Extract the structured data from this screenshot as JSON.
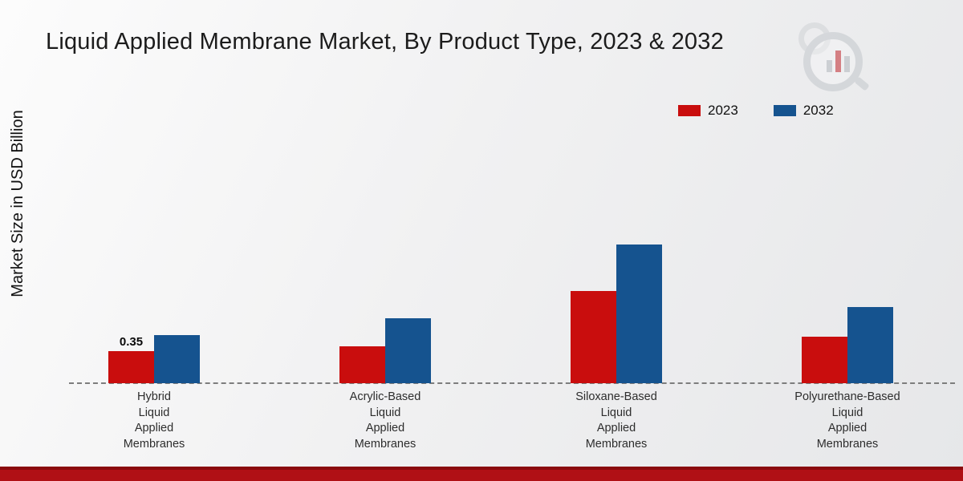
{
  "title": "Liquid Applied Membrane Market, By Product Type, 2023 & 2032",
  "ylabel": "Market Size in USD Billion",
  "colors": {
    "series_2023": "#c90d0d",
    "series_2032": "#15538f",
    "footer_band": "#b01015",
    "footer_band_edge": "#8a0a0e",
    "baseline": "#7d7d7d"
  },
  "legend": {
    "items": [
      {
        "label": "2023"
      },
      {
        "label": "2032"
      }
    ]
  },
  "chart_data": {
    "type": "bar",
    "title": "Liquid Applied Membrane Market, By Product Type, 2023 & 2032",
    "xlabel": "",
    "ylabel": "Market Size in USD Billion",
    "unit": "USD Billion",
    "categories": [
      "Hybrid Liquid Applied Membranes",
      "Acrylic-Based Liquid Applied Membranes",
      "Siloxane-Based Liquid Applied Membranes",
      "Polyurethane-Based Liquid Applied Membranes"
    ],
    "category_label_lines": [
      [
        "Hybrid",
        "Liquid",
        "Applied",
        "Membranes"
      ],
      [
        "Acrylic-Based",
        "Liquid",
        "Applied",
        "Membranes"
      ],
      [
        "Siloxane-Based",
        "Liquid",
        "Applied",
        "Membranes"
      ],
      [
        "Polyurethane-Based",
        "Liquid",
        "Applied",
        "Membranes"
      ]
    ],
    "series": [
      {
        "name": "2023",
        "color": "#c90d0d",
        "values": [
          0.35,
          0.4,
          1.0,
          0.5
        ]
      },
      {
        "name": "2032",
        "color": "#15538f",
        "values": [
          0.52,
          0.7,
          1.5,
          0.82
        ]
      }
    ],
    "data_labels": [
      {
        "series_index": 0,
        "category_index": 0,
        "text": "0.35"
      }
    ],
    "ylim": [
      0,
      2.6
    ],
    "grid": false,
    "legend_position": "top-right",
    "baseline_style": "dashed"
  }
}
